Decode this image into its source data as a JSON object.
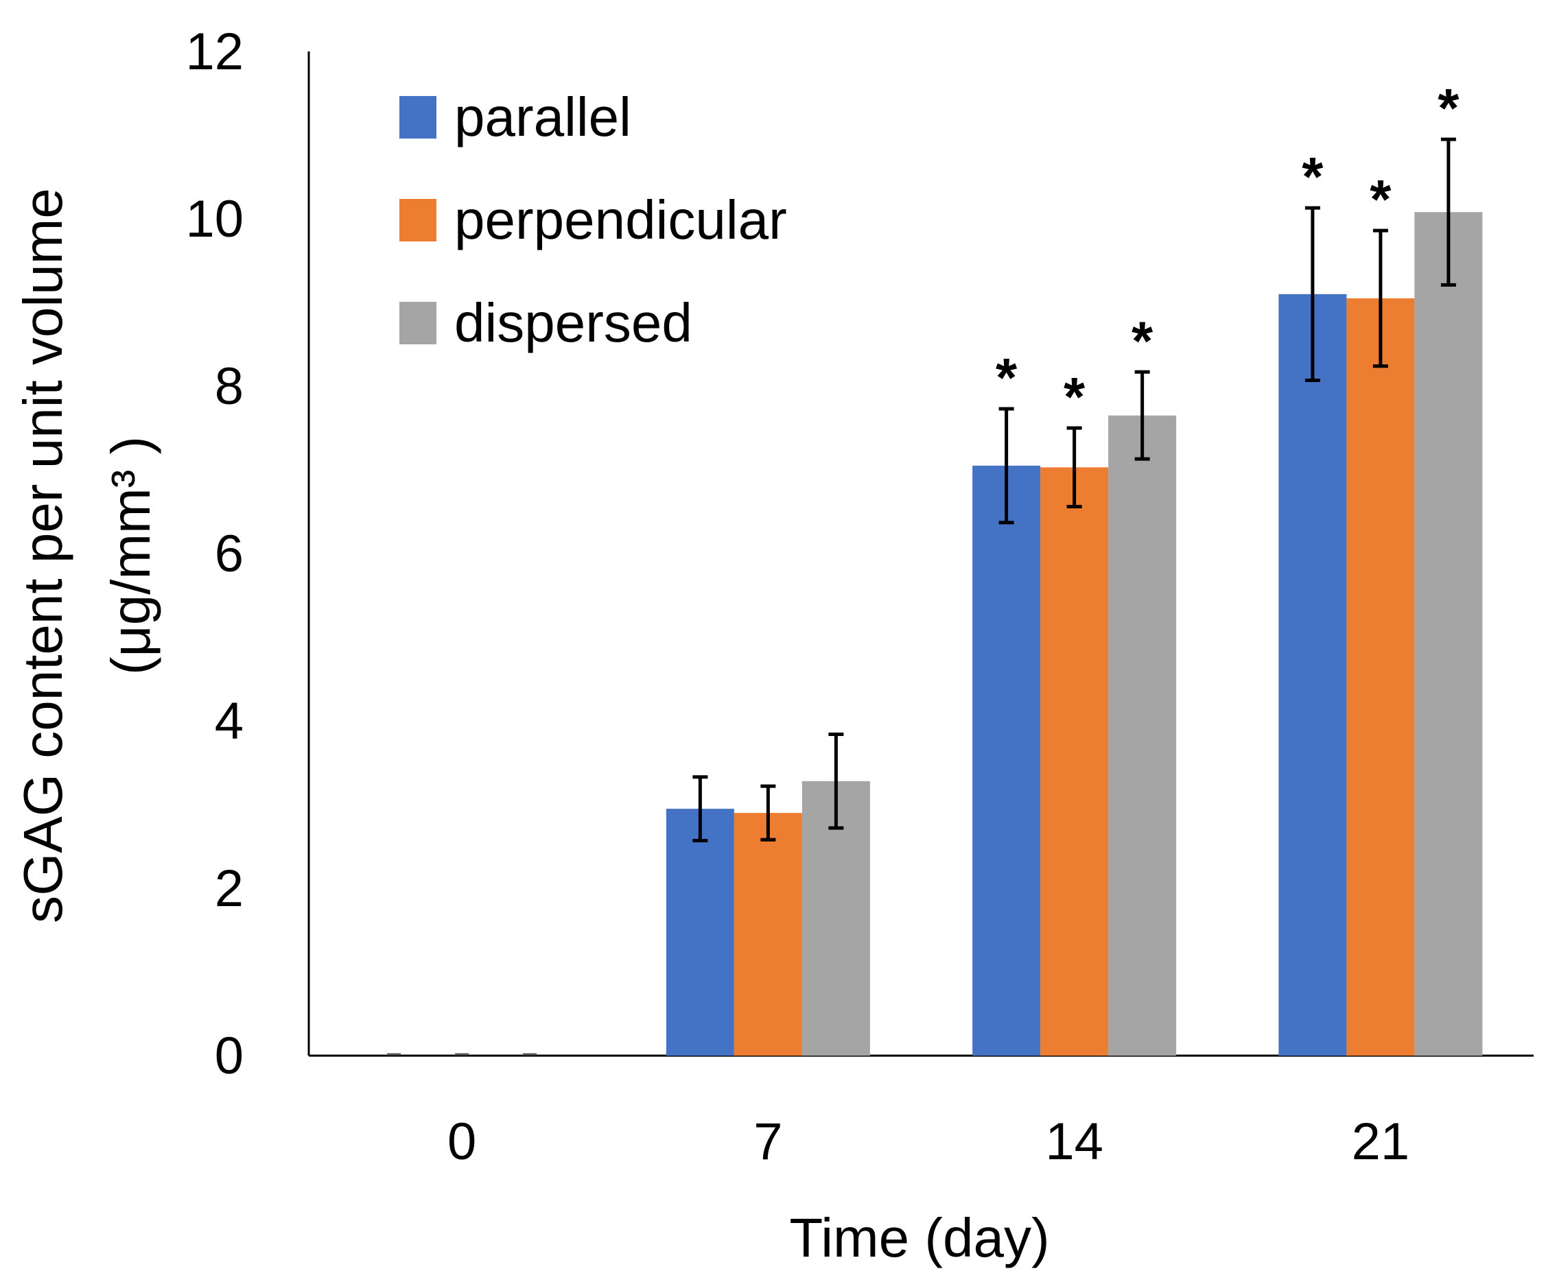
{
  "chart_data": {
    "type": "bar",
    "title": "",
    "xlabel": "Time (day)",
    "ylabel_line1": "sGAG content per unit volume",
    "ylabel_line2": "(μg/mm³ )",
    "categories": [
      "0",
      "7",
      "14",
      "21"
    ],
    "ylim": [
      0,
      12
    ],
    "yticks": [
      "0",
      "2",
      "4",
      "6",
      "8",
      "10",
      "12"
    ],
    "grid": false,
    "legend_position": "top-left",
    "series": [
      {
        "name": "parallel",
        "color": "#4472C4",
        "values": [
          0.0,
          2.95,
          7.05,
          9.1
        ],
        "errors": [
          0.0,
          0.38,
          0.68,
          1.03
        ],
        "significance": [
          "",
          "",
          "*",
          "*"
        ]
      },
      {
        "name": "perpendicular",
        "color": "#ED7D31",
        "values": [
          0.0,
          2.9,
          7.03,
          9.05
        ],
        "errors": [
          0.0,
          0.32,
          0.47,
          0.81
        ],
        "significance": [
          "",
          "",
          "*",
          "*"
        ]
      },
      {
        "name": "dispersed",
        "color": "#A5A5A5",
        "values": [
          0.0,
          3.28,
          7.65,
          10.08
        ],
        "errors": [
          0.0,
          0.56,
          0.52,
          0.87
        ],
        "significance": [
          "",
          "",
          "*",
          "*"
        ]
      }
    ]
  }
}
